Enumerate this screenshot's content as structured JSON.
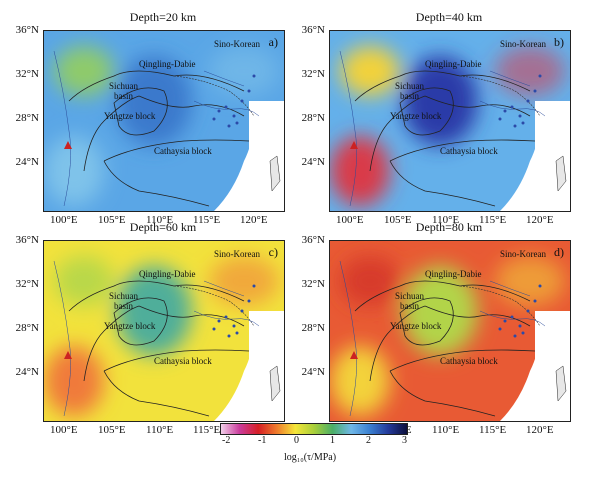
{
  "panels": [
    {
      "title": "Depth=20 km",
      "letter": "a)",
      "region_labels": {
        "sino": "Sino-Korean",
        "qinling": "Qingling-Dabie",
        "sichuan": "Sichuan\nbasin",
        "yangtze": "Yangtze block",
        "cathaysia": "Cathaysia block"
      },
      "palette": {
        "bg": "#5aa6e6",
        "blob1": "#3a79cc",
        "blob2": "#7fc3ea",
        "blob3": "#8fcb6a"
      }
    },
    {
      "title": "Depth=40 km",
      "letter": "b)",
      "region_labels": {
        "sino": "Sino-Korean",
        "qinling": "Qingling-Dabie",
        "sichuan": "Sichuan\nbasin",
        "yangtze": "Yangtze block",
        "cathaysia": "Cathaysia block"
      },
      "palette": {
        "bg": "#64b0ea",
        "blob1": "#2a3aa8",
        "blob2": "#d93a4a",
        "blob3": "#f2d23a"
      }
    },
    {
      "title": "Depth=60 km",
      "letter": "c)",
      "region_labels": {
        "sino": "Sino-Korean",
        "qinling": "Qingling-Dabie",
        "sichuan": "Sichuan\nbasin",
        "yangtze": "Yangtze block",
        "cathaysia": "Cathaysia block"
      },
      "palette": {
        "bg": "#f2e23c",
        "blob1": "#4fae9a",
        "blob2": "#f07a3a",
        "blob3": "#b9d84a"
      }
    },
    {
      "title": "Depth=80 km",
      "letter": "d)",
      "region_labels": {
        "sino": "Sino-Korean",
        "qinling": "Qingling-Dabie",
        "sichuan": "Sichuan\nbasin",
        "yangtze": "Yangtze block",
        "cathaysia": "Cathaysia block"
      },
      "palette": {
        "bg": "#e85a34",
        "blob1": "#b2d44a",
        "blob2": "#f3d23a",
        "blob3": "#d73a2a"
      }
    }
  ],
  "axes": {
    "y_ticks": [
      "36°N",
      "32°N",
      "28°N",
      "24°N"
    ],
    "x_ticks": [
      "100°E",
      "105°E",
      "110°E",
      "115°E",
      "120°E"
    ]
  },
  "colorbar": {
    "ticks": [
      "-2",
      "-1",
      "0",
      "1",
      "2",
      "3"
    ],
    "title": "log₁₀(τ/MPa)",
    "colors": [
      "#f2d0ea",
      "#c93c9c",
      "#d61f26",
      "#ef7b2c",
      "#f5e63a",
      "#a9cf3a",
      "#4aae66",
      "#6fb7e7",
      "#3a7fd0",
      "#243a9a",
      "#0c0f3c"
    ]
  }
}
